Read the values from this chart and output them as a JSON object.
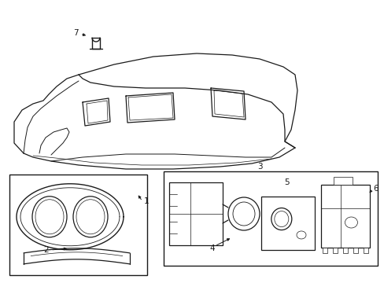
{
  "bg_color": "#ffffff",
  "line_color": "#1a1a1a",
  "lw": 0.9,
  "fig_w": 4.89,
  "fig_h": 3.6,
  "dpi": 100
}
